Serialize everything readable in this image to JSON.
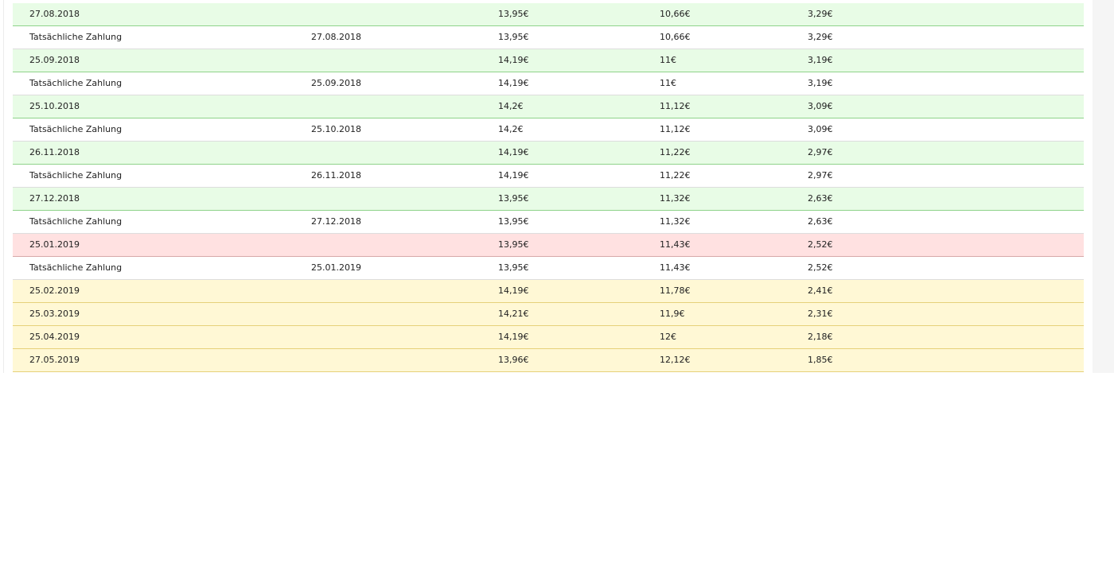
{
  "colors": {
    "scheduled_paid": "#e8fce6",
    "actual_payment": "#ffffff",
    "overdue": "#ffe1e1",
    "upcoming": "#fff8d5"
  },
  "rows": [
    {
      "kind": "green",
      "c0": "27.08.2018",
      "c1": "",
      "c2": "13,95€",
      "c3": "10,66€",
      "c4": "3,29€"
    },
    {
      "kind": "white",
      "c0": "Tatsächliche Zahlung",
      "c1": "27.08.2018",
      "c2": "13,95€",
      "c3": "10,66€",
      "c4": "3,29€"
    },
    {
      "kind": "green",
      "c0": "25.09.2018",
      "c1": "",
      "c2": "14,19€",
      "c3": "11€",
      "c4": "3,19€"
    },
    {
      "kind": "white",
      "c0": "Tatsächliche Zahlung",
      "c1": "25.09.2018",
      "c2": "14,19€",
      "c3": "11€",
      "c4": "3,19€"
    },
    {
      "kind": "green",
      "c0": "25.10.2018",
      "c1": "",
      "c2": "14,2€",
      "c3": "11,12€",
      "c4": "3,09€"
    },
    {
      "kind": "white",
      "c0": "Tatsächliche Zahlung",
      "c1": "25.10.2018",
      "c2": "14,2€",
      "c3": "11,12€",
      "c4": "3,09€"
    },
    {
      "kind": "green",
      "c0": "26.11.2018",
      "c1": "",
      "c2": "14,19€",
      "c3": "11,22€",
      "c4": "2,97€"
    },
    {
      "kind": "white",
      "c0": "Tatsächliche Zahlung",
      "c1": "26.11.2018",
      "c2": "14,19€",
      "c3": "11,22€",
      "c4": "2,97€"
    },
    {
      "kind": "green",
      "c0": "27.12.2018",
      "c1": "",
      "c2": "13,95€",
      "c3": "11,32€",
      "c4": "2,63€"
    },
    {
      "kind": "white",
      "c0": "Tatsächliche Zahlung",
      "c1": "27.12.2018",
      "c2": "13,95€",
      "c3": "11,32€",
      "c4": "2,63€"
    },
    {
      "kind": "red",
      "c0": "25.01.2019",
      "c1": "",
      "c2": "13,95€",
      "c3": "11,43€",
      "c4": "2,52€"
    },
    {
      "kind": "white",
      "c0": "Tatsächliche Zahlung",
      "c1": "25.01.2019",
      "c2": "13,95€",
      "c3": "11,43€",
      "c4": "2,52€"
    },
    {
      "kind": "yellow",
      "c0": "25.02.2019",
      "c1": "",
      "c2": "14,19€",
      "c3": "11,78€",
      "c4": "2,41€"
    },
    {
      "kind": "yellow",
      "c0": "25.03.2019",
      "c1": "",
      "c2": "14,21€",
      "c3": "11,9€",
      "c4": "2,31€"
    },
    {
      "kind": "yellow",
      "c0": "25.04.2019",
      "c1": "",
      "c2": "14,19€",
      "c3": "12€",
      "c4": "2,18€"
    },
    {
      "kind": "yellow",
      "c0": "27.05.2019",
      "c1": "",
      "c2": "13,96€",
      "c3": "12,12€",
      "c4": "1,85€"
    }
  ]
}
